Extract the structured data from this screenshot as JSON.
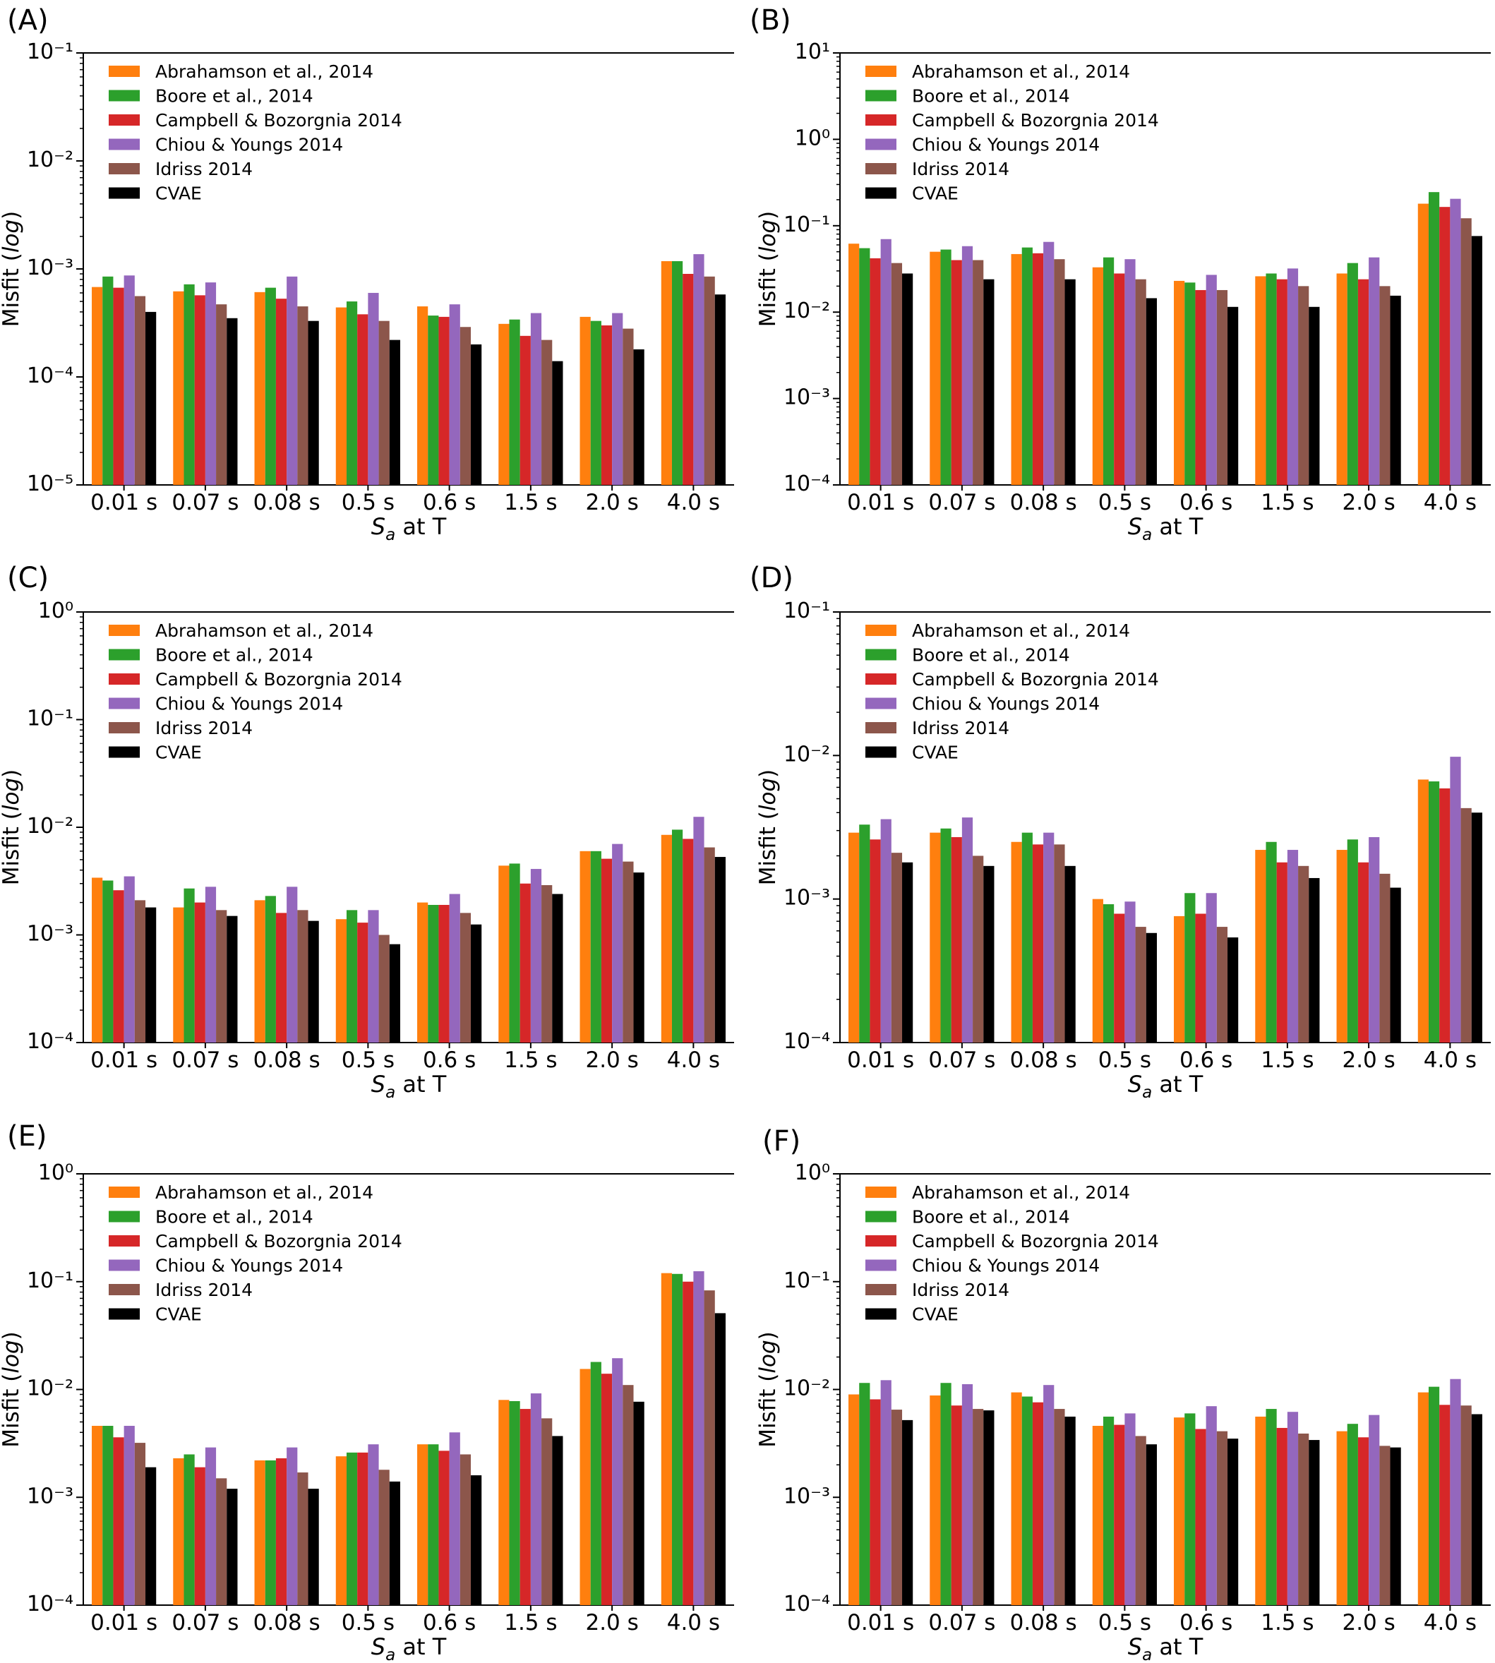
{
  "chart_data": [
    {
      "panel": "(A)",
      "type": "bar",
      "yscale": "log",
      "ylim": [
        1e-05,
        0.1
      ],
      "ylabel": "Misfit (log)",
      "xlabel": "S_a at T",
      "legend": "top-left",
      "categories": [
        "0.01 s",
        "0.07 s",
        "0.08 s",
        "0.5 s",
        "0.6 s",
        "1.5 s",
        "2.0 s",
        "4.0 s"
      ],
      "series": [
        {
          "name": "Abrahamson et al., 2014",
          "values": [
            0.00068,
            0.00062,
            0.00061,
            0.00044,
            0.00045,
            0.00031,
            0.00036,
            0.00118
          ]
        },
        {
          "name": "Boore et al., 2014",
          "values": [
            0.00085,
            0.00072,
            0.00067,
            0.0005,
            0.00037,
            0.00034,
            0.00033,
            0.00118
          ]
        },
        {
          "name": "Campbell & Bozorgnia 2014",
          "values": [
            0.00067,
            0.00057,
            0.00053,
            0.00038,
            0.00036,
            0.00024,
            0.0003,
            0.0009
          ]
        },
        {
          "name": "Chiou & Youngs 2014",
          "values": [
            0.00087,
            0.00075,
            0.00085,
            0.0006,
            0.00047,
            0.00039,
            0.00039,
            0.00137
          ]
        },
        {
          "name": "Idriss 2014",
          "values": [
            0.00056,
            0.00047,
            0.00045,
            0.00033,
            0.00029,
            0.00022,
            0.00028,
            0.00085
          ]
        },
        {
          "name": "CVAE",
          "values": [
            0.0004,
            0.00035,
            0.00033,
            0.00022,
            0.0002,
            0.00014,
            0.00018,
            0.00058
          ]
        }
      ]
    },
    {
      "panel": "(B)",
      "type": "bar",
      "yscale": "log",
      "ylim": [
        0.0001,
        10
      ],
      "ylabel": "Misfit (log)",
      "xlabel": "S_a at T",
      "legend": "top-left",
      "categories": [
        "0.01 s",
        "0.07 s",
        "0.08 s",
        "0.5 s",
        "0.6 s",
        "1.5 s",
        "2.0 s",
        "4.0 s"
      ],
      "series": [
        {
          "name": "Abrahamson et al., 2014",
          "values": [
            0.062,
            0.05,
            0.047,
            0.033,
            0.023,
            0.026,
            0.028,
            0.18
          ]
        },
        {
          "name": "Boore et al., 2014",
          "values": [
            0.055,
            0.053,
            0.056,
            0.043,
            0.022,
            0.028,
            0.037,
            0.245
          ]
        },
        {
          "name": "Campbell & Bozorgnia 2014",
          "values": [
            0.042,
            0.04,
            0.048,
            0.028,
            0.018,
            0.024,
            0.024,
            0.165
          ]
        },
        {
          "name": "Chiou & Youngs 2014",
          "values": [
            0.07,
            0.058,
            0.065,
            0.041,
            0.027,
            0.032,
            0.043,
            0.205
          ]
        },
        {
          "name": "Idriss 2014",
          "values": [
            0.037,
            0.04,
            0.041,
            0.024,
            0.018,
            0.02,
            0.02,
            0.122
          ]
        },
        {
          "name": "CVAE",
          "values": [
            0.028,
            0.024,
            0.024,
            0.0145,
            0.0115,
            0.0115,
            0.0155,
            0.076
          ]
        }
      ]
    },
    {
      "panel": "(C)",
      "type": "bar",
      "yscale": "log",
      "ylim": [
        0.0001,
        1
      ],
      "ylabel": "Misfit (log)",
      "xlabel": "S_a at T",
      "legend": "top-left",
      "categories": [
        "0.01 s",
        "0.07 s",
        "0.08 s",
        "0.5 s",
        "0.6 s",
        "1.5 s",
        "2.0 s",
        "4.0 s"
      ],
      "series": [
        {
          "name": "Abrahamson et al., 2014",
          "values": [
            0.0034,
            0.0018,
            0.0021,
            0.0014,
            0.002,
            0.0044,
            0.006,
            0.0085
          ]
        },
        {
          "name": "Boore et al., 2014",
          "values": [
            0.0032,
            0.0027,
            0.0023,
            0.0017,
            0.0019,
            0.0046,
            0.006,
            0.0095
          ]
        },
        {
          "name": "Campbell & Bozorgnia 2014",
          "values": [
            0.0026,
            0.002,
            0.0016,
            0.0013,
            0.0019,
            0.003,
            0.0051,
            0.0078
          ]
        },
        {
          "name": "Chiou & Youngs 2014",
          "values": [
            0.0035,
            0.0028,
            0.0028,
            0.0017,
            0.0024,
            0.0041,
            0.007,
            0.0125
          ]
        },
        {
          "name": "Idriss 2014",
          "values": [
            0.0021,
            0.0017,
            0.0017,
            0.001,
            0.0016,
            0.0029,
            0.0048,
            0.0065
          ]
        },
        {
          "name": "CVAE",
          "values": [
            0.0018,
            0.0015,
            0.00135,
            0.00082,
            0.00125,
            0.0024,
            0.0038,
            0.0053
          ]
        }
      ]
    },
    {
      "panel": "(D)",
      "type": "bar",
      "yscale": "log",
      "ylim": [
        0.0001,
        0.1
      ],
      "ylabel": "Misfit (log)",
      "xlabel": "S_a at T",
      "legend": "top-left",
      "categories": [
        "0.01 s",
        "0.07 s",
        "0.08 s",
        "0.5 s",
        "0.6 s",
        "1.5 s",
        "2.0 s",
        "4.0 s"
      ],
      "series": [
        {
          "name": "Abrahamson et al., 2014",
          "values": [
            0.0029,
            0.0029,
            0.0025,
            0.001,
            0.00076,
            0.0022,
            0.0022,
            0.0068
          ]
        },
        {
          "name": "Boore et al., 2014",
          "values": [
            0.0033,
            0.0031,
            0.0029,
            0.00092,
            0.0011,
            0.0025,
            0.0026,
            0.0066
          ]
        },
        {
          "name": "Campbell & Bozorgnia 2014",
          "values": [
            0.0026,
            0.0027,
            0.0024,
            0.00079,
            0.00079,
            0.0018,
            0.0018,
            0.0059
          ]
        },
        {
          "name": "Chiou & Youngs 2014",
          "values": [
            0.0036,
            0.0037,
            0.0029,
            0.00096,
            0.0011,
            0.0022,
            0.0027,
            0.0098
          ]
        },
        {
          "name": "Idriss 2014",
          "values": [
            0.0021,
            0.002,
            0.0024,
            0.00064,
            0.00064,
            0.0017,
            0.0015,
            0.0043
          ]
        },
        {
          "name": "CVAE",
          "values": [
            0.0018,
            0.0017,
            0.0017,
            0.00058,
            0.00054,
            0.0014,
            0.0012,
            0.004
          ]
        }
      ]
    },
    {
      "panel": "(E)",
      "type": "bar",
      "yscale": "log",
      "ylim": [
        0.0001,
        1
      ],
      "ylabel": "Misfit (log)",
      "xlabel": "S_a at T",
      "legend": "top-left",
      "categories": [
        "0.01 s",
        "0.07 s",
        "0.08 s",
        "0.5 s",
        "0.6 s",
        "1.5 s",
        "2.0 s",
        "4.0 s"
      ],
      "series": [
        {
          "name": "Abrahamson et al., 2014",
          "values": [
            0.0046,
            0.0023,
            0.0022,
            0.0024,
            0.0031,
            0.008,
            0.0155,
            0.12
          ]
        },
        {
          "name": "Boore et al., 2014",
          "values": [
            0.0046,
            0.0025,
            0.0022,
            0.0026,
            0.0031,
            0.0078,
            0.018,
            0.118
          ]
        },
        {
          "name": "Campbell & Bozorgnia 2014",
          "values": [
            0.0036,
            0.0019,
            0.0023,
            0.0026,
            0.0027,
            0.0066,
            0.014,
            0.1
          ]
        },
        {
          "name": "Chiou & Youngs 2014",
          "values": [
            0.0046,
            0.0029,
            0.0029,
            0.0031,
            0.004,
            0.0092,
            0.0195,
            0.125
          ]
        },
        {
          "name": "Idriss 2014",
          "values": [
            0.0032,
            0.0015,
            0.0017,
            0.0018,
            0.0025,
            0.0054,
            0.011,
            0.083
          ]
        },
        {
          "name": "CVAE",
          "values": [
            0.0019,
            0.0012,
            0.0012,
            0.0014,
            0.0016,
            0.0037,
            0.0077,
            0.051
          ]
        }
      ]
    },
    {
      "panel": "(F)",
      "type": "bar",
      "yscale": "log",
      "ylim": [
        0.0001,
        1
      ],
      "ylabel": "Misfit (log)",
      "xlabel": "S_a at T",
      "legend": "top-left",
      "categories": [
        "0.01 s",
        "0.07 s",
        "0.08 s",
        "0.5 s",
        "0.6 s",
        "1.5 s",
        "2.0 s",
        "4.0 s"
      ],
      "series": [
        {
          "name": "Abrahamson et al., 2014",
          "values": [
            0.009,
            0.0088,
            0.0094,
            0.0046,
            0.0055,
            0.0056,
            0.0041,
            0.0094
          ]
        },
        {
          "name": "Boore et al., 2014",
          "values": [
            0.0115,
            0.0115,
            0.0086,
            0.0056,
            0.006,
            0.0066,
            0.0048,
            0.0106
          ]
        },
        {
          "name": "Campbell & Bozorgnia 2014",
          "values": [
            0.0081,
            0.0071,
            0.0076,
            0.0047,
            0.0043,
            0.0044,
            0.0036,
            0.0072
          ]
        },
        {
          "name": "Chiou & Youngs 2014",
          "values": [
            0.0122,
            0.0112,
            0.011,
            0.006,
            0.007,
            0.0062,
            0.0058,
            0.0125
          ]
        },
        {
          "name": "Idriss 2014",
          "values": [
            0.0065,
            0.0066,
            0.0066,
            0.0037,
            0.0041,
            0.0039,
            0.003,
            0.0071
          ]
        },
        {
          "name": "CVAE",
          "values": [
            0.0052,
            0.0064,
            0.0056,
            0.0031,
            0.0035,
            0.0034,
            0.0029,
            0.0059
          ]
        }
      ]
    }
  ],
  "colors": {
    "Abrahamson et al., 2014": "#ff7f0e",
    "Boore et al., 2014": "#2ca02c",
    "Campbell & Bozorgnia 2014": "#d62728",
    "Chiou & Youngs 2014": "#9467bd",
    "Idriss 2014": "#8c564b",
    "CVAE": "#000000"
  }
}
